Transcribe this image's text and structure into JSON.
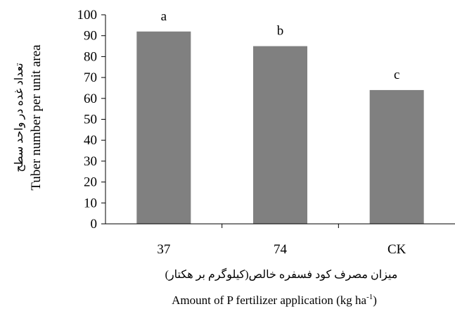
{
  "chart_data": {
    "type": "bar",
    "categories": [
      "37",
      "74",
      "CK"
    ],
    "values": [
      92,
      85,
      64
    ],
    "significance_letters": [
      "a",
      "b",
      "c"
    ],
    "ylim": [
      0,
      100
    ],
    "yticks": [
      0,
      10,
      20,
      30,
      40,
      50,
      60,
      70,
      80,
      90,
      100
    ],
    "ylabel_fa": "تعداد غده در واحد سطح",
    "ylabel": "Tuber number per unit area",
    "xlabel_fa": "میزان مصرف کود فسفره خالص(کیلوگرم بر هکتار)",
    "xlabel": "Amount of P fertilizer application (kg ha",
    "xlabel_superscript": "-1",
    "xlabel_suffix": ")",
    "bar_color": "#808080",
    "grid": false
  }
}
